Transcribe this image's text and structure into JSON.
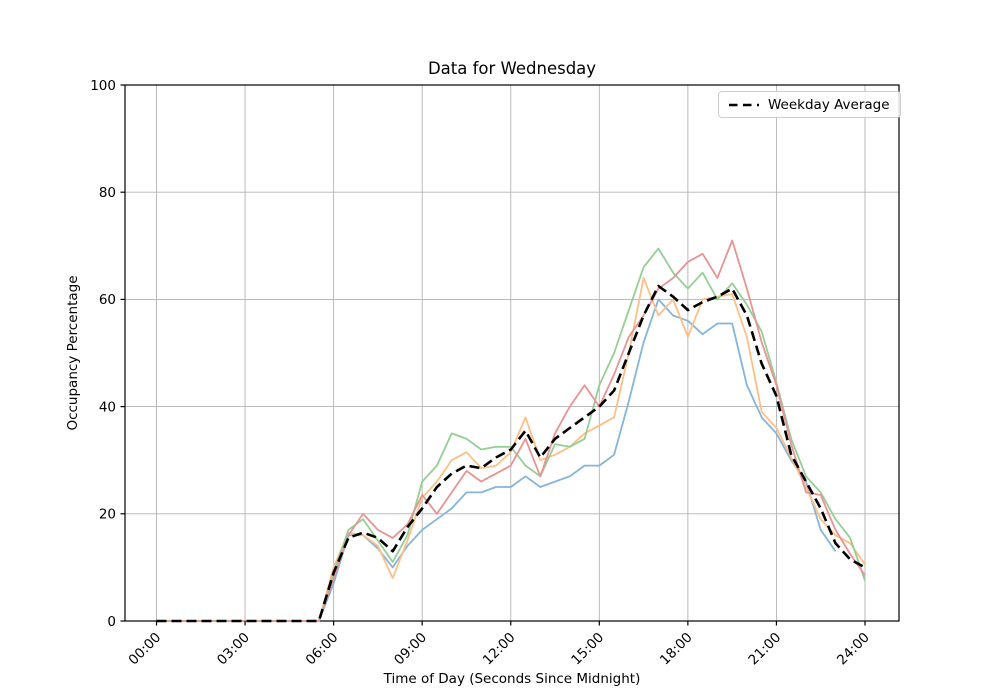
{
  "chart_data": {
    "type": "line",
    "title": "Data for Wednesday",
    "xlabel": "Time of Day (Seconds Since Midnight)",
    "ylabel": "Occupancy Percentage",
    "ylim": [
      0,
      100
    ],
    "xlim_hours": [
      0,
      24
    ],
    "grid": true,
    "x_tick_hours": [
      0,
      3,
      6,
      9,
      12,
      15,
      18,
      21,
      24
    ],
    "x_tick_labels": [
      "00:00",
      "03:00",
      "06:00",
      "09:00",
      "12:00",
      "15:00",
      "18:00",
      "21:00",
      "24:00"
    ],
    "y_ticks": [
      0,
      20,
      40,
      60,
      80,
      100
    ],
    "legend": {
      "position": "upper right",
      "entries": [
        {
          "label": "Weekday Average",
          "style": "dashed",
          "color": "#000000"
        }
      ]
    },
    "x_hours": [
      0,
      0.5,
      1,
      1.5,
      2,
      2.5,
      3,
      3.5,
      4,
      4.5,
      5,
      5.5,
      6,
      6.5,
      7,
      7.5,
      8,
      8.5,
      9,
      9.5,
      10,
      10.5,
      11,
      11.5,
      12,
      12.5,
      13,
      13.5,
      14,
      14.5,
      15,
      15.5,
      16,
      16.5,
      17,
      17.5,
      18,
      18.5,
      19,
      19.5,
      20,
      20.5,
      21,
      21.5,
      22,
      22.5,
      23,
      23.5,
      24
    ],
    "series": [
      {
        "name": "series-blue",
        "color": "#85b5da",
        "values": [
          0,
          0,
          0,
          0,
          0,
          0,
          0,
          0,
          0,
          0,
          0,
          0,
          7,
          16,
          16,
          13.5,
          10,
          14,
          17,
          19,
          21,
          24,
          24,
          25,
          25,
          27,
          25,
          26,
          27,
          29,
          29,
          31,
          41,
          52,
          60,
          57,
          56,
          53.5,
          55.5,
          55.5,
          44,
          38,
          35,
          30,
          26,
          17,
          13,
          null,
          null
        ]
      },
      {
        "name": "series-orange",
        "color": "#ffbf86",
        "values": [
          0,
          0,
          0,
          0,
          0,
          0,
          0,
          0,
          0,
          0,
          0,
          0,
          10,
          16.5,
          16,
          14,
          8,
          15,
          23,
          26,
          30,
          31.5,
          28.5,
          29,
          31.5,
          38,
          30,
          31,
          32.5,
          35,
          36.5,
          38,
          50,
          64,
          57,
          60,
          53,
          60,
          60.5,
          61,
          53,
          39,
          36,
          30.5,
          25,
          19,
          16,
          14.5,
          10.5
        ]
      },
      {
        "name": "series-green",
        "color": "#95cf95",
        "values": [
          0,
          0,
          0,
          0,
          0,
          0,
          0,
          0,
          0,
          0,
          0,
          0,
          9,
          17,
          19,
          15,
          11,
          16,
          26,
          29,
          35,
          34,
          32,
          32.5,
          32.5,
          29,
          27,
          33,
          32.5,
          34,
          44,
          50,
          58,
          66,
          69.5,
          65,
          62,
          65,
          60,
          63,
          59,
          54,
          44.5,
          34,
          27,
          24,
          19,
          15.5,
          7.5
        ]
      },
      {
        "name": "series-red",
        "color": "#ea9394",
        "values": [
          0,
          0,
          0,
          0,
          0,
          0,
          0,
          0,
          0,
          0,
          0,
          0,
          8,
          16,
          20,
          17,
          15.5,
          18,
          23.5,
          20,
          24,
          28,
          26,
          27.5,
          29,
          34,
          27,
          35,
          40,
          44,
          40,
          46,
          53,
          57,
          62,
          64,
          67,
          68.5,
          64,
          71,
          62,
          52,
          44,
          33,
          24,
          23.5,
          17,
          12.5,
          8.5
        ]
      }
    ],
    "average_series": {
      "name": "Weekday Average",
      "color": "#000000",
      "style": "dashed",
      "values": [
        0,
        0,
        0,
        0,
        0,
        0,
        0,
        0,
        0,
        0,
        0,
        0,
        9,
        15.5,
        16.5,
        15.5,
        13,
        17.5,
        21,
        25,
        27.5,
        29,
        28.5,
        30.5,
        32,
        35.5,
        30.5,
        34,
        36,
        38,
        40,
        43,
        50,
        57,
        62.5,
        60.5,
        58,
        59.5,
        60.5,
        62,
        57,
        48,
        42,
        31,
        26,
        21,
        14.5,
        11.5,
        10
      ]
    }
  }
}
